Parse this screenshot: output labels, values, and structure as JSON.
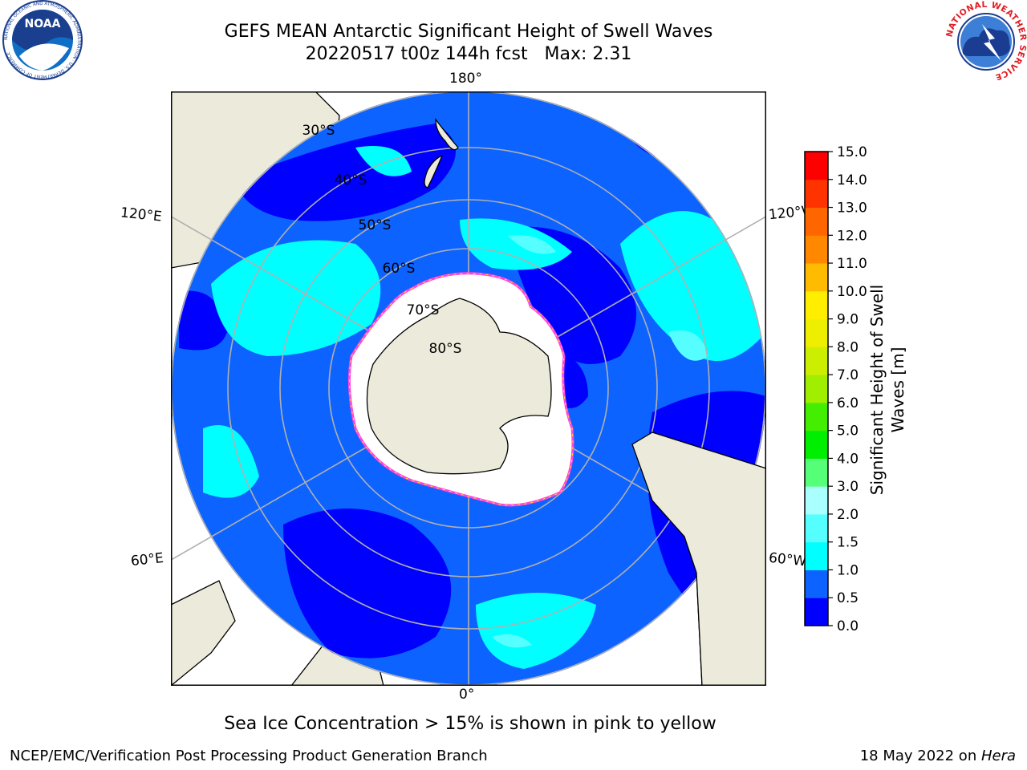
{
  "header": {
    "title_line1": "GEFS MEAN Antarctic Significant Height of Swell Waves",
    "title_line2": "20220517 t00z 144h fcst   Max: 2.31"
  },
  "logos": {
    "noaa": {
      "text": "NOAA",
      "ring_text": "NATIONAL OCEANIC AND ATMOSPHERIC ADMINISTRATION · U.S. DEPARTMENT OF COMMERCE"
    },
    "nws": {
      "ring_text": "NATIONAL WEATHER SERVICE"
    }
  },
  "map": {
    "projection": "south-polar-stereographic",
    "longitude_labels": {
      "top": "180°",
      "bottom": "0°",
      "upper_left": "120°E",
      "upper_right": "120°W",
      "lower_left": "60°E",
      "lower_right": "60°W"
    },
    "latitude_labels": [
      "30°S",
      "40°S",
      "50°S",
      "60°S",
      "70°S",
      "80°S"
    ],
    "colors": {
      "land": "#ecebdb",
      "sea_ice_shelf": "#ffffff",
      "grid": "#b0b0b0",
      "ice_edge_pink": "#ff44dd",
      "ice_edge_yellow": "#ffdd33"
    }
  },
  "colorbar": {
    "label": "Significant Height of Swell Waves [m]",
    "label_lines": [
      "Significant Height of Swell",
      "Waves [m]"
    ],
    "ticks": [
      "0.0",
      "0.5",
      "1.0",
      "1.5",
      "2.0",
      "3.0",
      "4.0",
      "5.0",
      "6.0",
      "7.0",
      "8.0",
      "9.0",
      "10.0",
      "11.0",
      "12.0",
      "13.0",
      "14.0",
      "15.0"
    ],
    "colors": [
      "#0000ff",
      "#0d63ff",
      "#00ffff",
      "#55ffff",
      "#aaffff",
      "#55ff77",
      "#00ee00",
      "#44ee00",
      "#a0ee00",
      "#ccee00",
      "#eeee00",
      "#ffee00",
      "#ffbb00",
      "#ff8800",
      "#ff6600",
      "#ff3300",
      "#ff0000"
    ]
  },
  "caption": "Sea Ice Concentration > 15% is shown in pink to yellow",
  "footer": {
    "left": "NCEP/EMC/Verification Post Processing Product Generation Branch",
    "right_prefix": "18 May 2022 on ",
    "right_host": "Hera"
  }
}
